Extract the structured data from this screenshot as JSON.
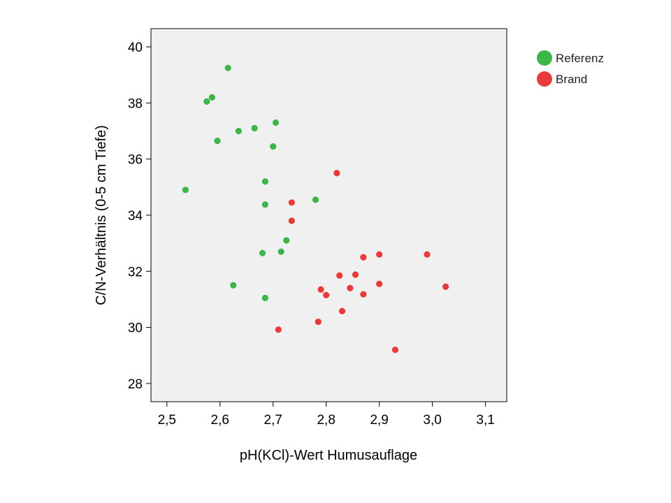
{
  "chart_data": {
    "type": "scatter",
    "xlabel": "pH(KCl)-Wert Humusauflage",
    "ylabel": "C/N-Verhältnis (0-5 cm Tiefe)",
    "xlim": [
      2.47,
      3.14
    ],
    "ylim": [
      27.35,
      40.65
    ],
    "x_ticks": [
      2.5,
      2.6,
      2.7,
      2.8,
      2.9,
      3.0,
      3.1
    ],
    "x_tick_labels": [
      "2,5",
      "2,6",
      "2,7",
      "2,8",
      "2,9",
      "3,0",
      "3,1"
    ],
    "y_ticks": [
      28,
      30,
      32,
      34,
      36,
      38,
      40
    ],
    "y_tick_labels": [
      "28",
      "30",
      "32",
      "34",
      "36",
      "38",
      "40"
    ],
    "grid": false,
    "legend_position": "right",
    "plot_background": "#f0f0f0",
    "series": [
      {
        "name": "Referenz",
        "color": "#3cb648",
        "points": [
          [
            2.615,
            39.25
          ],
          [
            2.585,
            38.2
          ],
          [
            2.575,
            38.05
          ],
          [
            2.665,
            37.1
          ],
          [
            2.705,
            37.3
          ],
          [
            2.635,
            37.0
          ],
          [
            2.595,
            36.65
          ],
          [
            2.7,
            36.45
          ],
          [
            2.535,
            34.9
          ],
          [
            2.685,
            35.2
          ],
          [
            2.685,
            34.38
          ],
          [
            2.78,
            34.55
          ],
          [
            2.725,
            33.1
          ],
          [
            2.68,
            32.65
          ],
          [
            2.715,
            32.7
          ],
          [
            2.625,
            31.5
          ],
          [
            2.685,
            31.05
          ]
        ]
      },
      {
        "name": "Brand",
        "color": "#e8393b",
        "points": [
          [
            2.82,
            35.5
          ],
          [
            2.735,
            34.45
          ],
          [
            2.735,
            33.8
          ],
          [
            2.87,
            32.5
          ],
          [
            2.9,
            32.6
          ],
          [
            2.99,
            32.6
          ],
          [
            2.825,
            31.85
          ],
          [
            2.855,
            31.88
          ],
          [
            2.845,
            31.4
          ],
          [
            2.79,
            31.35
          ],
          [
            2.9,
            31.55
          ],
          [
            3.025,
            31.45
          ],
          [
            2.8,
            31.15
          ],
          [
            2.87,
            31.18
          ],
          [
            2.83,
            30.58
          ],
          [
            2.785,
            30.2
          ],
          [
            2.71,
            29.92
          ],
          [
            2.93,
            29.2
          ]
        ]
      }
    ]
  }
}
